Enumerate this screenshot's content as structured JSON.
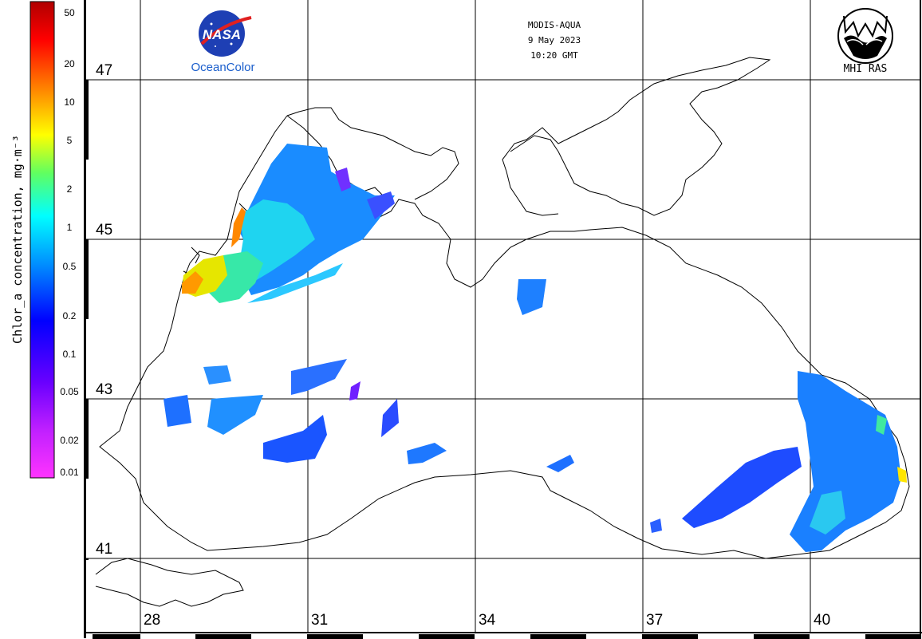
{
  "header": {
    "sensor": "MODIS-AQUA",
    "date": "9 May 2023",
    "time": "10:20 GMT"
  },
  "logos": {
    "nasa_text": "NASA",
    "oceancolor_label": "OceanColor",
    "mhi_label": "MHI RAS"
  },
  "colorbar": {
    "title": "Chlor_a concentration, mg·m⁻³",
    "scale": "log",
    "range": [
      0.01,
      60
    ],
    "ticks": [
      "50",
      "20",
      "10",
      "5",
      "2",
      "1",
      "0.5",
      "0.2",
      "0.1",
      "0.05",
      "0.02",
      "0.01"
    ],
    "colors": [
      "#ff00ff",
      "#8000ff",
      "#0000ff",
      "#0080ff",
      "#00ffff",
      "#00ff80",
      "#ffff00",
      "#ff8000",
      "#ff0000",
      "#990000"
    ]
  },
  "map": {
    "lat_labels": [
      "47",
      "45",
      "43",
      "41"
    ],
    "lon_labels": [
      "28",
      "31",
      "34",
      "37",
      "40"
    ],
    "coastline_color": "#000000",
    "grid_color": "#000000"
  }
}
